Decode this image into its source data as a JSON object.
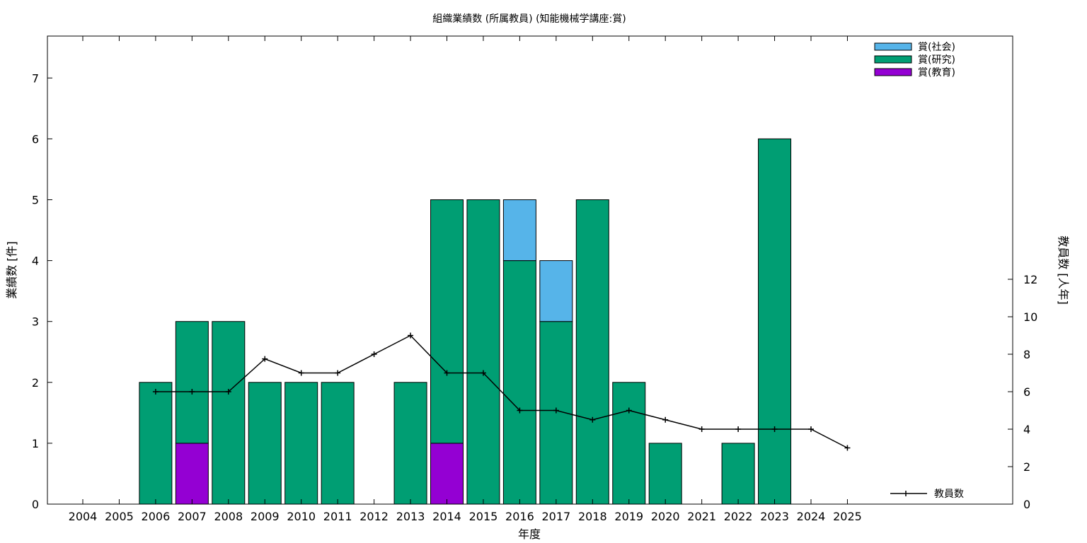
{
  "chart_data": {
    "type": "bar",
    "title": "組織業績数 (所属教員) (知能機械学講座:賞)",
    "xlabel": "年度",
    "ylabel": "業績数 [件]",
    "y2label": "教員数 [人年]",
    "categories": [
      "2004",
      "2005",
      "2006",
      "2007",
      "2008",
      "2009",
      "2010",
      "2011",
      "2012",
      "2013",
      "2014",
      "2015",
      "2016",
      "2017",
      "2018",
      "2019",
      "2020",
      "2021",
      "2022",
      "2023",
      "2024",
      "2025"
    ],
    "ylim": [
      0,
      7.7
    ],
    "y2lim": [
      0,
      12.5
    ],
    "yticks": [
      0,
      1,
      2,
      3,
      4,
      5,
      6,
      7
    ],
    "y2ticks": [
      0,
      2,
      4,
      6,
      8,
      10,
      12
    ],
    "stacked": true,
    "series": [
      {
        "name": "賞(教育)",
        "color": "#9400d3",
        "values": [
          0,
          0,
          0,
          1,
          0,
          0,
          0,
          0,
          0,
          0,
          1,
          0,
          0,
          0,
          0,
          0,
          0,
          0,
          0,
          0,
          0,
          0
        ]
      },
      {
        "name": "賞(研究)",
        "color": "#009e73",
        "values": [
          0,
          0,
          2,
          2,
          3,
          2,
          2,
          2,
          0,
          2,
          4,
          5,
          4,
          3,
          5,
          2,
          1,
          0,
          1,
          6,
          0,
          0
        ]
      },
      {
        "name": "賞(社会)",
        "color": "#56b4e9",
        "values": [
          0,
          0,
          0,
          0,
          0,
          0,
          0,
          0,
          0,
          0,
          0,
          0,
          1,
          1,
          0,
          0,
          0,
          0,
          0,
          0,
          0,
          0
        ]
      }
    ],
    "line": {
      "name": "教員数",
      "axis": "y2",
      "color": "#000000",
      "x": [
        "2006",
        "2007",
        "2008",
        "2009",
        "2010",
        "2011",
        "2012",
        "2013",
        "2014",
        "2015",
        "2016",
        "2017",
        "2018",
        "2019",
        "2020",
        "2021",
        "2022",
        "2023",
        "2024",
        "2025"
      ],
      "values": [
        6,
        6,
        6,
        7.75,
        7,
        7,
        8,
        9,
        7,
        7,
        5,
        5,
        4.5,
        5,
        4.5,
        4,
        4,
        4,
        4,
        3
      ]
    },
    "legend_order": [
      "賞(社会)",
      "賞(研究)",
      "賞(教育)"
    ],
    "legend_placement": "top-right",
    "line_legend_placement": "bottom-right"
  }
}
